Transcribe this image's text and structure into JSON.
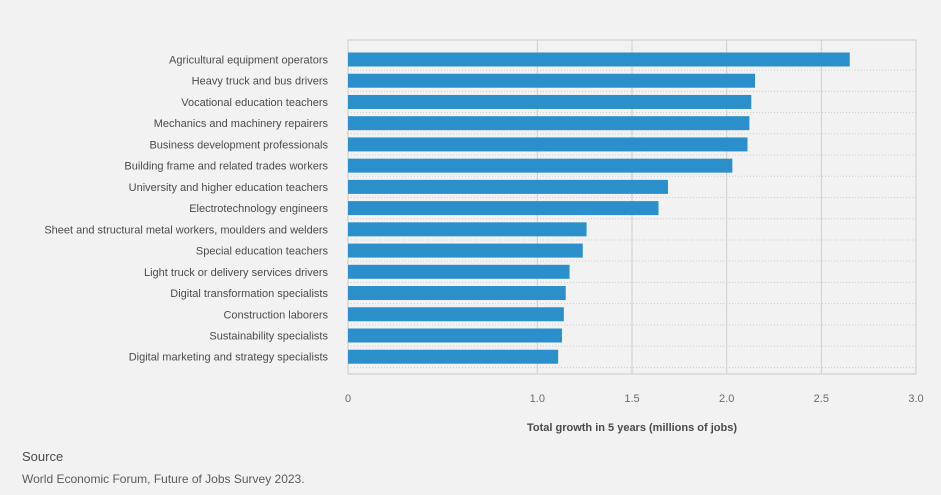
{
  "chart_data": {
    "type": "bar",
    "orientation": "horizontal",
    "categories": [
      "Agricultural equipment operators",
      "Heavy truck and bus drivers",
      "Vocational education teachers",
      "Mechanics and machinery repairers",
      "Business development professionals",
      "Building frame and related trades workers",
      "University and higher education teachers",
      "Electrotechnology engineers",
      "Sheet and structural metal workers, moulders and welders",
      "Special education teachers",
      "Light truck or delivery services drivers",
      "Digital transformation specialists",
      "Construction laborers",
      "Sustainability specialists",
      "Digital marketing and strategy specialists"
    ],
    "values": [
      2.65,
      2.15,
      2.13,
      2.12,
      2.11,
      2.03,
      1.69,
      1.64,
      1.26,
      1.24,
      1.17,
      1.15,
      1.14,
      1.13,
      1.11
    ],
    "xlabel": "Total growth in 5 years (millions of jobs)",
    "ylabel": "",
    "xlim": [
      0,
      3.0
    ],
    "xticks": [
      "0",
      "1.0",
      "1.5",
      "2.0",
      "2.5",
      "3.0"
    ],
    "xtick_values": [
      0,
      1.0,
      1.5,
      2.0,
      2.5,
      3.0
    ],
    "grid": true,
    "bar_color": "#2b8fcb"
  },
  "footer": {
    "source_heading": "Source",
    "source_text": "World Economic Forum, Future of Jobs Survey 2023."
  }
}
